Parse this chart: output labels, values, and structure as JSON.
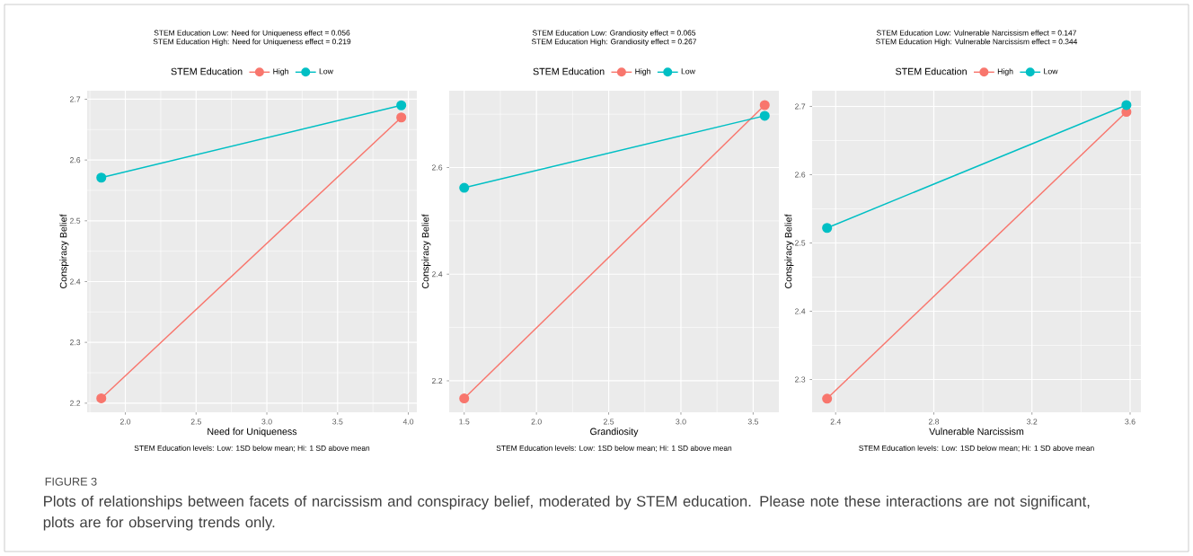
{
  "chart_data": [
    {
      "type": "line",
      "title": "STEM Education Low: Need for Uniqueness effect = 0.056",
      "subtitle": "STEM Education High: Need for Uniqueness effect = 0.219",
      "xlabel": "Need for Uniqueness",
      "ylabel": "Conspiracy Belief",
      "legend_title": "STEM Education",
      "legend": "top",
      "grid": true,
      "marker": "circle",
      "xlim": [
        1.73,
        4.06
      ],
      "ylim": [
        2.185,
        2.714
      ],
      "xticks": [
        {
          "value": 2,
          "label": "2.0"
        },
        2.5,
        {
          "value": 3,
          "label": "3.0"
        },
        3.5,
        {
          "value": 4,
          "label": "4.0"
        }
      ],
      "yticks": [
        2.2,
        2.3,
        2.4,
        2.5,
        2.6,
        2.7
      ],
      "series": [
        {
          "name": "High",
          "color": "#f8766d",
          "x": [
            1.83,
            3.95
          ],
          "values": [
            2.208,
            2.67
          ]
        },
        {
          "name": "Low",
          "color": "#00bfc4",
          "x": [
            1.83,
            3.95
          ],
          "values": [
            2.571,
            2.69
          ]
        }
      ],
      "annotations": [
        "STEM Education levels: Low: 1SD below mean; Hi: 1 SD above mean",
        "FIGURE 3",
        "Plots of relationships between facets of narcissism and conspiracy belief, moderated by STEM education. Please note these interactions are not significant, plots are for observing trends only."
      ]
    },
    {
      "type": "line",
      "title": "STEM Education Low: Grandiosity effect = 0.065",
      "subtitle": "STEM Education High: Grandiosity effect = 0.267",
      "xlabel": "Grandiosity",
      "ylabel": "Conspiracy Belief",
      "legend_title": "STEM Education",
      "legend": "top",
      "grid": true,
      "marker": "circle",
      "xlim": [
        1.396,
        3.678
      ],
      "ylim": [
        2.141,
        2.744
      ],
      "xticks": [
        1.5,
        {
          "value": 2,
          "label": "2.0"
        },
        2.5,
        {
          "value": 3,
          "label": "3.0"
        },
        3.5
      ],
      "yticks": [
        2.2,
        2.4,
        2.6
      ],
      "series": [
        {
          "name": "High",
          "color": "#f8766d",
          "x": [
            1.5,
            3.58
          ],
          "values": [
            2.167,
            2.717
          ]
        },
        {
          "name": "Low",
          "color": "#00bfc4",
          "x": [
            1.5,
            3.58
          ],
          "values": [
            2.562,
            2.697
          ]
        }
      ],
      "annotations": [
        "STEM Education levels: Low: 1SD below mean; Hi: 1 SD above mean"
      ]
    },
    {
      "type": "line",
      "title": "STEM Education Low: Vulnerable Narcissism effect = 0.147",
      "subtitle": "STEM Education High: Vulnerable Narcissism effect = 0.344",
      "xlabel": "Vulnerable Narcissism",
      "ylabel": "Conspiracy Belief",
      "legend_title": "STEM Education",
      "legend": "top",
      "grid": true,
      "marker": "circle",
      "xlim": [
        2.304,
        3.644
      ],
      "ylim": [
        2.252,
        2.723
      ],
      "xticks": [
        2.4,
        2.8,
        3.2,
        3.6
      ],
      "yticks": [
        2.3,
        2.4,
        2.5,
        2.6,
        2.7
      ],
      "series": [
        {
          "name": "High",
          "color": "#f8766d",
          "x": [
            2.365,
            3.585
          ],
          "values": [
            2.272,
            2.692
          ]
        },
        {
          "name": "Low",
          "color": "#00bfc4",
          "x": [
            2.365,
            3.585
          ],
          "values": [
            2.522,
            2.702
          ]
        }
      ],
      "annotations": [
        "STEM Education levels: Low: 1SD below mean; Hi: 1 SD above mean"
      ]
    }
  ]
}
